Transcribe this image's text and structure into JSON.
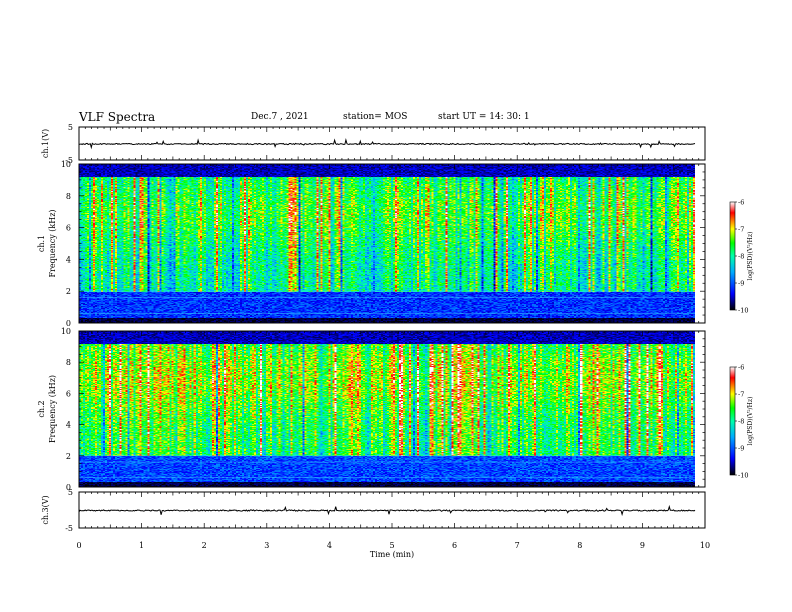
{
  "header": {
    "title": "VLF Spectra",
    "date": "Dec.7 , 2021",
    "station": "station= MOS",
    "start": "start UT = 14: 30: 1"
  },
  "chart_data": [
    {
      "type": "line",
      "panel": "ch1-waveform",
      "ylabel": "ch.1(V)",
      "ylim": [
        -5,
        5
      ],
      "yticks": [
        "5",
        "-5"
      ]
    },
    {
      "type": "heatmap",
      "panel": "ch1-spectrogram",
      "ylabel_top": "ch.1",
      "ylabel": "Frequency (kHz)",
      "ylim": [
        0,
        10
      ],
      "yticks": [
        "0",
        "2",
        "4",
        "6",
        "8",
        "10"
      ],
      "colorbar": {
        "label": "log(PSD)(V²/Hz)",
        "range": [
          -10,
          -6
        ],
        "ticks": [
          "-6",
          "-7",
          "-8",
          "-9",
          "-10"
        ],
        "colors": [
          "#000000",
          "#0000ff",
          "#00aaff",
          "#00ffaa",
          "#00ff00",
          "#ffff00",
          "#ff0000",
          "#ffffff"
        ]
      }
    },
    {
      "type": "heatmap",
      "panel": "ch2-spectrogram",
      "ylabel_top": "ch.2",
      "ylabel": "Frequency (kHz)",
      "ylim": [
        0,
        10
      ],
      "yticks": [
        "0",
        "2",
        "4",
        "6",
        "8",
        "10"
      ],
      "colorbar": {
        "label": "log(PSD)(V²/Hz)",
        "range": [
          -10,
          -6
        ],
        "ticks": [
          "-6",
          "-7",
          "-8",
          "-9",
          "-10"
        ],
        "colors": [
          "#000000",
          "#0000ff",
          "#00aaff",
          "#00ffaa",
          "#00ff00",
          "#ffff00",
          "#ff0000",
          "#ffffff"
        ]
      }
    },
    {
      "type": "line",
      "panel": "ch3-waveform",
      "ylabel": "ch.3(V)",
      "ylim": [
        -5,
        5
      ],
      "yticks": [
        "5",
        "-5"
      ],
      "xlabel": "Time (min)",
      "xlim": [
        0,
        10
      ],
      "xticks": [
        "0",
        "1",
        "2",
        "3",
        "4",
        "5",
        "6",
        "7",
        "8",
        "9",
        "10"
      ]
    }
  ]
}
